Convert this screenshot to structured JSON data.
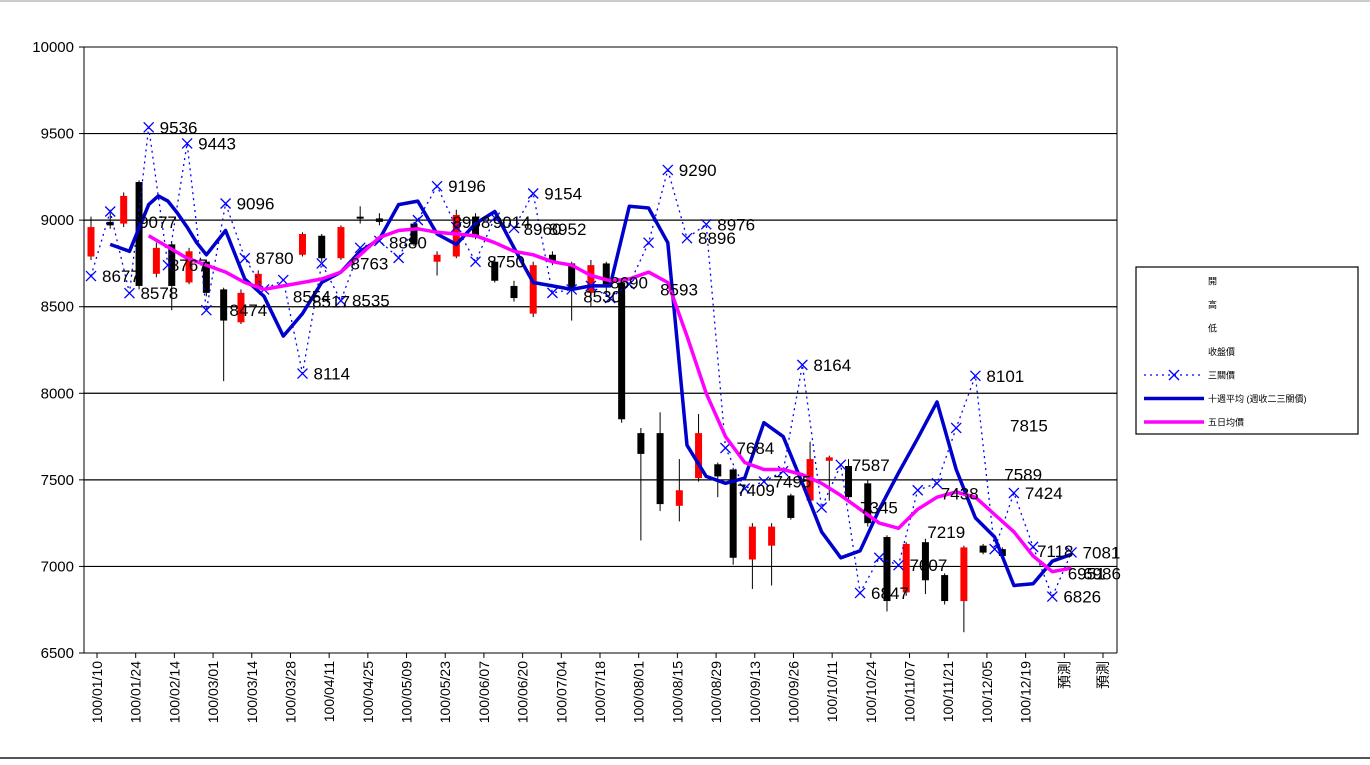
{
  "chart_data": {
    "type": "line",
    "ylim": [
      6500,
      10000
    ],
    "yticks": [
      6500,
      7000,
      7500,
      8000,
      8500,
      9000,
      9500,
      10000
    ],
    "grid": true,
    "legend_placement": "right",
    "x_tick_labels": [
      "100/01/10",
      "100/01/24",
      "100/02/14",
      "100/03/01",
      "100/03/14",
      "100/03/28",
      "100/04/11",
      "100/04/25",
      "100/05/09",
      "100/05/23",
      "100/06/07",
      "100/06/20",
      "100/07/04",
      "100/07/18",
      "100/08/01",
      "100/08/15",
      "100/08/29",
      "100/09/13",
      "100/09/26",
      "100/10/11",
      "100/10/24",
      "100/11/07",
      "100/11/21",
      "100/12/05",
      "100/12/19",
      "預測",
      "預測"
    ],
    "series": [
      {
        "name": "三關價",
        "kind": "crosses",
        "color": "#0000ff",
        "x": [
          0,
          1,
          2,
          3,
          4,
          5,
          6,
          7,
          8,
          9,
          10,
          11,
          12,
          13,
          14,
          15,
          16,
          17,
          18,
          19,
          20,
          21,
          22,
          23,
          24,
          25,
          26,
          27,
          28,
          29,
          30,
          31,
          32,
          33,
          34,
          35,
          36,
          37,
          38,
          39,
          40,
          41,
          42,
          43,
          44,
          45,
          46,
          47,
          48,
          49,
          50,
          51
        ],
        "values": [
          8677,
          9050,
          8578,
          9536,
          8740,
          9443,
          8480,
          9096,
          8780,
          8600,
          8654,
          8114,
          8750,
          8535,
          8840,
          8880,
          8782,
          9000,
          9196,
          8960,
          8760,
          9014,
          8955,
          9154,
          8580,
          8600,
          8620,
          8550,
          8630,
          8870,
          9290,
          8896,
          8976,
          7684,
          7450,
          7490,
          7550,
          8164,
          7340,
          7587,
          6847,
          7050,
          7007,
          7440,
          7480,
          7800,
          8101,
          7100,
          7424,
          7113,
          6826,
          7081
        ],
        "labels": [
          {
            "i": 0,
            "text": "8677"
          },
          {
            "i": 2,
            "text": "8578"
          },
          {
            "i": 3,
            "text": "9536"
          },
          {
            "i": 5,
            "text": "9443"
          },
          {
            "i": 7,
            "text": "9096"
          },
          {
            "i": 8,
            "text": "8780"
          },
          {
            "i": 11,
            "text": "8114"
          },
          {
            "i": 13,
            "text": "8535"
          },
          {
            "i": 18,
            "text": "9196"
          },
          {
            "i": 23,
            "text": "9154"
          },
          {
            "i": 30,
            "text": "9290"
          },
          {
            "i": 31,
            "text": "8896"
          },
          {
            "i": 32,
            "text": "8976"
          },
          {
            "i": 33,
            "text": "7684"
          },
          {
            "i": 37,
            "text": "8164"
          },
          {
            "i": 39,
            "text": "7587"
          },
          {
            "i": 40,
            "text": "6847"
          },
          {
            "i": 42,
            "text": "7007"
          },
          {
            "i": 46,
            "text": "8101"
          },
          {
            "i": 48,
            "text": "7424"
          },
          {
            "i": 50,
            "text": "6826"
          },
          {
            "i": 51,
            "text": "7081"
          }
        ]
      },
      {
        "name": "十週平均",
        "kind": "line",
        "color": "#0000cc",
        "x": [
          1,
          2,
          3,
          3.5,
          4,
          4.5,
          5,
          5.5,
          6,
          7,
          8,
          9,
          10,
          11,
          12,
          13,
          14,
          15,
          16,
          17,
          18,
          19,
          20,
          21,
          22,
          23,
          24,
          25,
          26,
          27,
          28,
          29,
          30,
          31,
          32,
          33,
          34,
          35,
          36,
          37,
          38,
          39,
          40,
          41,
          42,
          43,
          44,
          45,
          46,
          47,
          48,
          49,
          50,
          51
        ],
        "values": [
          8860,
          8820,
          9090,
          9140,
          9110,
          9040,
          8960,
          8870,
          8800,
          8940,
          8660,
          8560,
          8330,
          8460,
          8640,
          8700,
          8820,
          8890,
          9090,
          9110,
          8920,
          8860,
          8980,
          9050,
          8840,
          8640,
          8620,
          8600,
          8620,
          8620,
          9080,
          9070,
          8870,
          7700,
          7520,
          7480,
          7510,
          7830,
          7750,
          7480,
          7200,
          7050,
          7090,
          7330,
          7540,
          7740,
          7950,
          7560,
          7280,
          7170,
          6890,
          6900,
          7030,
          7070
        ],
        "labels": []
      },
      {
        "name": "五日均價",
        "kind": "line",
        "color": "#ff00ff",
        "x": [
          3,
          5,
          7,
          8,
          9,
          10,
          11,
          12,
          13,
          14,
          15,
          16,
          17,
          18,
          19,
          20,
          21,
          22,
          23,
          24,
          25,
          26,
          27,
          28,
          29,
          30,
          31,
          32,
          33,
          34,
          35,
          36,
          37,
          38,
          39,
          40,
          41,
          42,
          43,
          44,
          45,
          46,
          47,
          48,
          49,
          50,
          51
        ],
        "values": [
          8910,
          8780,
          8700,
          8640,
          8600,
          8620,
          8640,
          8660,
          8700,
          8800,
          8900,
          8940,
          8950,
          8930,
          8920,
          8910,
          8870,
          8820,
          8800,
          8760,
          8740,
          8680,
          8650,
          8660,
          8700,
          8640,
          8330,
          8000,
          7750,
          7600,
          7560,
          7560,
          7530,
          7480,
          7410,
          7330,
          7250,
          7220,
          7330,
          7400,
          7430,
          7400,
          7300,
          7200,
          7060,
          6970,
          6990
        ],
        "labels": []
      }
    ],
    "candles": [
      {
        "x": 0,
        "o": 8790,
        "c": 8960,
        "h": 9020,
        "l": 8770
      },
      {
        "x": 1,
        "o": 8990,
        "c": 8970,
        "h": 9050,
        "l": 8950
      },
      {
        "x": 1.7,
        "o": 8980,
        "c": 9140,
        "h": 9160,
        "l": 8960
      },
      {
        "x": 2.5,
        "o": 9220,
        "c": 8620,
        "h": 9230,
        "l": 8600
      },
      {
        "x": 3.4,
        "o": 8690,
        "c": 8840,
        "h": 8870,
        "l": 8670
      },
      {
        "x": 4.2,
        "o": 8860,
        "c": 8620,
        "h": 8870,
        "l": 8480
      },
      {
        "x": 5.1,
        "o": 8640,
        "c": 8820,
        "h": 8840,
        "l": 8630
      },
      {
        "x": 6,
        "o": 8760,
        "c": 8580,
        "h": 8770,
        "l": 8560
      },
      {
        "x": 6.9,
        "o": 8600,
        "c": 8420,
        "h": 8610,
        "l": 8070
      },
      {
        "x": 7.8,
        "o": 8410,
        "c": 8580,
        "h": 8600,
        "l": 8400
      },
      {
        "x": 8.7,
        "o": 8600,
        "c": 8690,
        "h": 8710,
        "l": 8590
      },
      {
        "x": 11,
        "o": 8800,
        "c": 8920,
        "h": 8930,
        "l": 8790
      },
      {
        "x": 12,
        "o": 8910,
        "c": 8780,
        "h": 8920,
        "l": 8760
      },
      {
        "x": 13,
        "o": 8780,
        "c": 8960,
        "h": 8970,
        "l": 8770
      },
      {
        "x": 14,
        "o": 9020,
        "c": 9010,
        "h": 9080,
        "l": 8980
      },
      {
        "x": 15,
        "o": 9010,
        "c": 8990,
        "h": 9040,
        "l": 8970
      },
      {
        "x": 16.8,
        "o": 8980,
        "c": 8860,
        "h": 8990,
        "l": 8850
      },
      {
        "x": 18,
        "o": 8760,
        "c": 8800,
        "h": 8820,
        "l": 8680
      },
      {
        "x": 19,
        "o": 8790,
        "c": 9030,
        "h": 9060,
        "l": 8780
      },
      {
        "x": 20,
        "o": 9020,
        "c": 8900,
        "h": 9040,
        "l": 8890
      },
      {
        "x": 21,
        "o": 8760,
        "c": 8650,
        "h": 8790,
        "l": 8640
      },
      {
        "x": 22,
        "o": 8620,
        "c": 8550,
        "h": 8650,
        "l": 8530
      },
      {
        "x": 23,
        "o": 8460,
        "c": 8740,
        "h": 8760,
        "l": 8440
      },
      {
        "x": 24,
        "o": 8800,
        "c": 8760,
        "h": 8820,
        "l": 8740
      },
      {
        "x": 25,
        "o": 8750,
        "c": 8600,
        "h": 8760,
        "l": 8420
      },
      {
        "x": 26,
        "o": 8580,
        "c": 8740,
        "h": 8770,
        "l": 8500
      },
      {
        "x": 26.8,
        "o": 8750,
        "c": 8630,
        "h": 8760,
        "l": 8560
      },
      {
        "x": 27.6,
        "o": 8640,
        "c": 7850,
        "h": 8660,
        "l": 7830
      },
      {
        "x": 28.6,
        "o": 7770,
        "c": 7650,
        "h": 7800,
        "l": 7150
      },
      {
        "x": 29.6,
        "o": 7770,
        "c": 7360,
        "h": 7890,
        "l": 7320
      },
      {
        "x": 30.6,
        "o": 7350,
        "c": 7440,
        "h": 7620,
        "l": 7260
      },
      {
        "x": 31.6,
        "o": 7510,
        "c": 7770,
        "h": 7880,
        "l": 7490
      },
      {
        "x": 32.6,
        "o": 7590,
        "c": 7520,
        "h": 7600,
        "l": 7400
      },
      {
        "x": 33.4,
        "o": 7560,
        "c": 7050,
        "h": 7570,
        "l": 7010
      },
      {
        "x": 34.4,
        "o": 7040,
        "c": 7230,
        "h": 7250,
        "l": 6870
      },
      {
        "x": 35.4,
        "o": 7120,
        "c": 7230,
        "h": 7250,
        "l": 6890
      },
      {
        "x": 36.4,
        "o": 7410,
        "c": 7280,
        "h": 7420,
        "l": 7270
      },
      {
        "x": 37.4,
        "o": 7380,
        "c": 7620,
        "h": 7720,
        "l": 7350
      },
      {
        "x": 38.4,
        "o": 7610,
        "c": 7630,
        "h": 7640,
        "l": 7380
      },
      {
        "x": 39.4,
        "o": 7580,
        "c": 7400,
        "h": 7620,
        "l": 7370
      },
      {
        "x": 40.4,
        "o": 7480,
        "c": 7250,
        "h": 7500,
        "l": 7230
      },
      {
        "x": 41.4,
        "o": 7170,
        "c": 6800,
        "h": 7180,
        "l": 6740
      },
      {
        "x": 42.4,
        "o": 6850,
        "c": 7130,
        "h": 7140,
        "l": 6830
      },
      {
        "x": 43.4,
        "o": 7140,
        "c": 6920,
        "h": 7160,
        "l": 6840
      },
      {
        "x": 44.4,
        "o": 6950,
        "c": 6800,
        "h": 6960,
        "l": 6780
      },
      {
        "x": 45.4,
        "o": 6800,
        "c": 7110,
        "h": 7120,
        "l": 6620
      },
      {
        "x": 46.4,
        "o": 7120,
        "c": 7080,
        "h": 7130,
        "l": 7070
      },
      {
        "x": 47.4,
        "o": 7100,
        "c": 7060,
        "h": 7110,
        "l": 7050
      }
    ],
    "candle_up_color": "#ff0000",
    "candle_down_color": "#000000",
    "overlap_labels": [
      {
        "x": 2.5,
        "y": 8990,
        "text": "9077"
      },
      {
        "x": 4.1,
        "y": 8740,
        "text": "8767"
      },
      {
        "x": 7.2,
        "y": 8480,
        "text": "8474"
      },
      {
        "x": 10.5,
        "y": 8560,
        "text": "8554"
      },
      {
        "x": 11.5,
        "y": 8530,
        "text": "8517"
      },
      {
        "x": 13.5,
        "y": 8750,
        "text": "8763"
      },
      {
        "x": 15.5,
        "y": 8870,
        "text": "8880"
      },
      {
        "x": 18.8,
        "y": 8990,
        "text": "8958"
      },
      {
        "x": 20.9,
        "y": 8990,
        "text": "9014"
      },
      {
        "x": 20.6,
        "y": 8760,
        "text": "8750"
      },
      {
        "x": 22.5,
        "y": 8950,
        "text": "8960"
      },
      {
        "x": 23.8,
        "y": 8950,
        "text": "8952"
      },
      {
        "x": 25.6,
        "y": 8560,
        "text": "8530"
      },
      {
        "x": 27,
        "y": 8640,
        "text": "8690"
      },
      {
        "x": 29.6,
        "y": 8600,
        "text": "8593"
      },
      {
        "x": 33.6,
        "y": 7440,
        "text": "7409"
      },
      {
        "x": 35.5,
        "y": 7490,
        "text": "7495"
      },
      {
        "x": 40,
        "y": 7340,
        "text": "7345"
      },
      {
        "x": 43.5,
        "y": 7200,
        "text": "7219"
      },
      {
        "x": 44.2,
        "y": 7420,
        "text": "7438"
      },
      {
        "x": 47.5,
        "y": 7530,
        "text": "7589"
      },
      {
        "x": 47.8,
        "y": 7815,
        "text": "7815"
      },
      {
        "x": 49.2,
        "y": 7090,
        "text": "7118"
      },
      {
        "x": 50.8,
        "y": 6960,
        "text": "6951"
      },
      {
        "x": 51.6,
        "y": 6960,
        "text": "6986"
      }
    ],
    "legend": {
      "entries": [
        {
          "label": "開",
          "kind": "none"
        },
        {
          "label": "高",
          "kind": "none"
        },
        {
          "label": "低",
          "kind": "none"
        },
        {
          "label": "收盤價",
          "kind": "none"
        },
        {
          "label": "三關價",
          "kind": "crosses",
          "color": "#0000ff"
        },
        {
          "label": "十週平均 (週收二三關價)",
          "kind": "line",
          "color": "#0000cc"
        },
        {
          "label": "五日均價",
          "kind": "line",
          "color": "#ff00ff"
        }
      ]
    }
  }
}
